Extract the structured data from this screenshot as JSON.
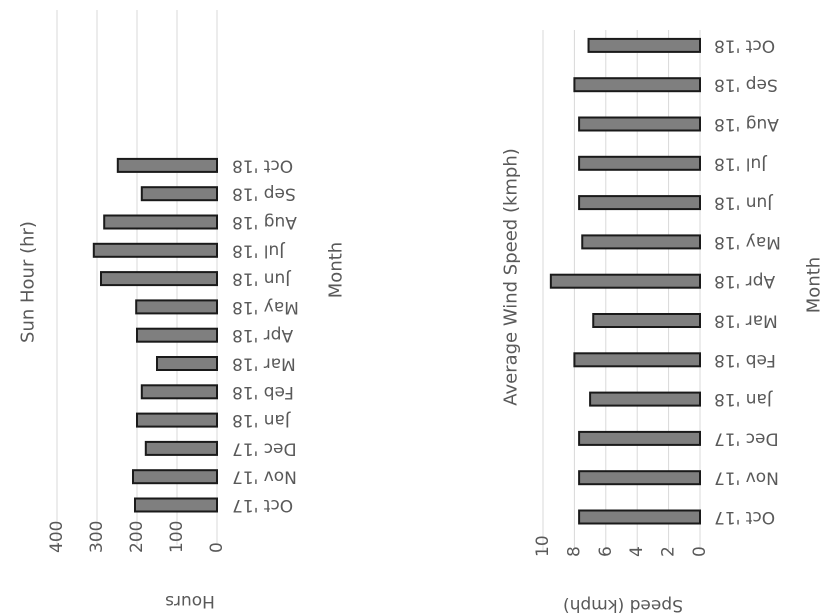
{
  "chart_data": [
    {
      "type": "bar",
      "title": "Sun Hour (hr)",
      "xlabel": "Month",
      "ylabel": "Hours",
      "categories": [
        "Oct '17",
        "Nov '17",
        "Dec '17",
        "Jan '18",
        "Feb '18",
        "Mar '18",
        "Apr '18",
        "May '18",
        "Jun '18",
        "Jul '18",
        "Aug '18",
        "Sep '18",
        "Oct '18"
      ],
      "values": [
        205,
        210,
        178,
        200,
        188,
        150,
        200,
        202,
        290,
        308,
        282,
        188,
        248
      ],
      "ylim": [
        0,
        400
      ],
      "yticks": [
        "0",
        "100",
        "200",
        "300",
        "400"
      ],
      "grid": true,
      "bar_color": "#7f7f7f",
      "edge_color": "#1a1a1a"
    },
    {
      "type": "bar",
      "title": "Average Wind Speed (kmph)",
      "xlabel": "Month",
      "ylabel": "Speed (kmph)",
      "categories": [
        "Oct '17",
        "Nov '17",
        "Dec '17",
        "Jan '18",
        "Feb '18",
        "Mar '18",
        "Apr '18",
        "May '18",
        "Jun '18",
        "Jul '18",
        "Aug '18",
        "Sep '18",
        "Oct '18"
      ],
      "values": [
        7.7,
        7.7,
        7.7,
        7.0,
        8.0,
        6.8,
        9.5,
        7.5,
        7.7,
        7.7,
        7.7,
        8.0,
        7.1
      ],
      "ylim": [
        0,
        10
      ],
      "yticks": [
        "0",
        "2",
        "4",
        "6",
        "8",
        "10"
      ],
      "grid": true,
      "bar_color": "#7f7f7f",
      "edge_color": "#1a1a1a"
    }
  ]
}
